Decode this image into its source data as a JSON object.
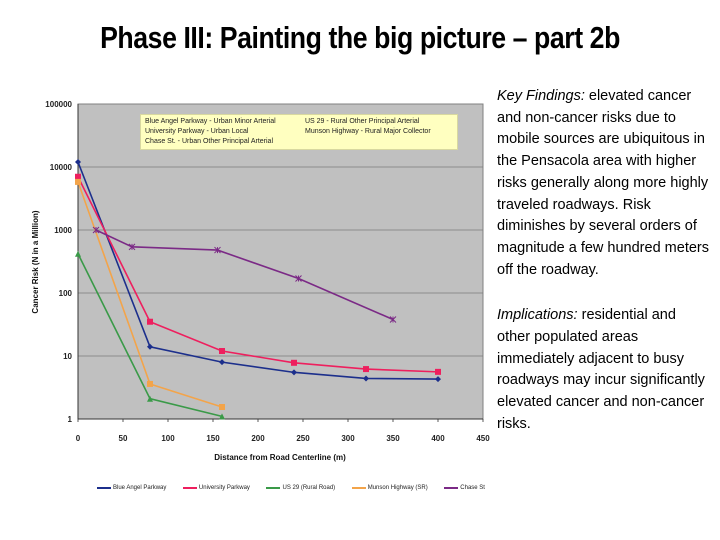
{
  "slide": {
    "title": "Phase III: Painting the big picture – part 2b"
  },
  "findings": {
    "key_lead": "Key Findings:",
    "key_body": " elevated cancer and non-cancer risks due to mobile sources are ubiquitous in the Pensacola area with higher risks generally along more highly traveled roadways. Risk diminishes by several orders of magnitude a few hundred meters off the roadway.",
    "impl_lead": "Implications:",
    "impl_body": " residential and other populated areas immediately adjacent to busy roadways may incur significantly elevated cancer and non-cancer risks."
  },
  "legend_box": {
    "items": [
      "Blue Angel Parkway - Urban Minor Arterial",
      "US 29 - Rural Other Principal Arterial",
      "University Parkway - Urban Local",
      "Munson Highway - Rural Major Collector",
      "Chase St. - Urban Other Principal Arterial"
    ]
  },
  "chart_data": {
    "type": "line",
    "title": "",
    "xlabel": "Distance from Road Centerline (m)",
    "ylabel": "Cancer Risk (N in a Million)",
    "x_scale": "linear",
    "y_scale": "log",
    "xlim": [
      0,
      450
    ],
    "ylim": [
      1,
      100000
    ],
    "x_ticks": [
      "0",
      "50",
      "100",
      "150",
      "200",
      "250",
      "300",
      "350",
      "400",
      "450"
    ],
    "y_ticks": [
      "1",
      "10",
      "100",
      "1000",
      "10000",
      "100000"
    ],
    "grid": "horizontal",
    "background": "#c0c0c0",
    "legend_position": "bottom",
    "series": [
      {
        "name": "Blue Angel Parkway",
        "color": "#1c2f8c",
        "marker": "diamond",
        "x": [
          0,
          80,
          160,
          240,
          320,
          400
        ],
        "y": [
          12000,
          14,
          8,
          5.5,
          4.4,
          4.3
        ]
      },
      {
        "name": "University Parkway",
        "color": "#ee1f5e",
        "marker": "square",
        "x": [
          0,
          80,
          160,
          240,
          320,
          400
        ],
        "y": [
          7000,
          35,
          12,
          7.8,
          6.2,
          5.6
        ]
      },
      {
        "name": "US 29 (Rural Road)",
        "color": "#3a9a48",
        "marker": "triangle",
        "x": [
          0,
          80,
          160
        ],
        "y": [
          420,
          2.1,
          1.1
        ]
      },
      {
        "name": "Munson Highway (SR)",
        "color": "#f3a44a",
        "marker": "square",
        "x": [
          0,
          80,
          160
        ],
        "y": [
          5800,
          3.6,
          1.55
        ]
      },
      {
        "name": "Chase St",
        "color": "#7b2a86",
        "marker": "x",
        "x": [
          20,
          60,
          155,
          245,
          350
        ],
        "y": [
          1000,
          540,
          480,
          170,
          38
        ]
      }
    ]
  }
}
